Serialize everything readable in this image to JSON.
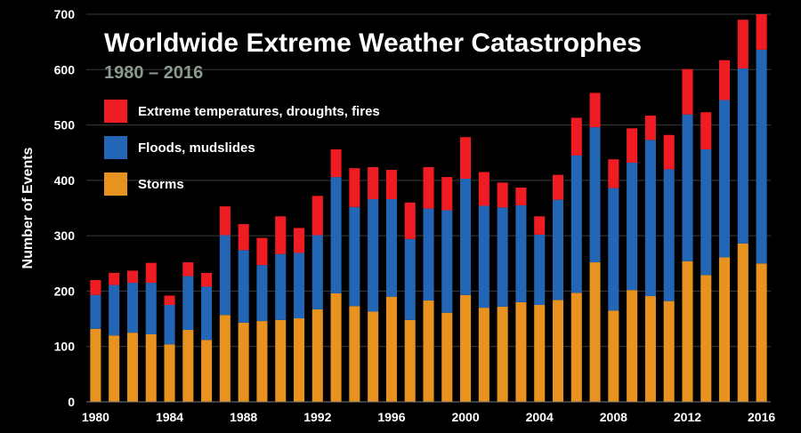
{
  "chart_data": {
    "type": "bar",
    "stacked": true,
    "title": "Worldwide Extreme Weather Catastrophes",
    "subtitle": "1980 – 2016",
    "ylabel": "Number of Events",
    "xlabel": "",
    "ylim": [
      0,
      700
    ],
    "yticks": [
      "0",
      "100",
      "200",
      "300",
      "400",
      "500",
      "600",
      "700"
    ],
    "xticks": [
      "1980",
      "1984",
      "1988",
      "1992",
      "1996",
      "2000",
      "2004",
      "2008",
      "2012",
      "2016"
    ],
    "grid": true,
    "legend_position": "top-left",
    "categories": [
      1980,
      1981,
      1982,
      1983,
      1984,
      1985,
      1986,
      1987,
      1988,
      1989,
      1990,
      1991,
      1992,
      1993,
      1994,
      1995,
      1996,
      1997,
      1998,
      1999,
      2000,
      2001,
      2002,
      2003,
      2004,
      2005,
      2006,
      2007,
      2008,
      2009,
      2010,
      2011,
      2012,
      2013,
      2014,
      2015,
      2016
    ],
    "series": [
      {
        "name": "Storms",
        "color": "#e8921f",
        "values": [
          132,
          120,
          125,
          122,
          104,
          130,
          112,
          157,
          143,
          146,
          148,
          151,
          167,
          196,
          173,
          163,
          190,
          148,
          183,
          161,
          193,
          170,
          172,
          180,
          175,
          184,
          197,
          252,
          165,
          202,
          191,
          182,
          254,
          229,
          261,
          286,
          250
        ]
      },
      {
        "name": "Floods, mudslides",
        "color": "#2366b5",
        "values": [
          61,
          91,
          90,
          93,
          71,
          97,
          96,
          144,
          131,
          101,
          119,
          118,
          134,
          210,
          179,
          203,
          176,
          146,
          166,
          185,
          210,
          184,
          179,
          175,
          127,
          181,
          248,
          244,
          221,
          230,
          282,
          238,
          265,
          227,
          284,
          316,
          386
        ]
      },
      {
        "name": "Extreme temperatures, droughts, fires",
        "color": "#f01c24",
        "values": [
          27,
          22,
          22,
          36,
          17,
          25,
          25,
          52,
          47,
          49,
          68,
          45,
          71,
          50,
          70,
          58,
          53,
          66,
          75,
          60,
          75,
          61,
          45,
          32,
          33,
          45,
          68,
          62,
          52,
          62,
          44,
          62,
          82,
          67,
          72,
          88,
          66
        ]
      }
    ]
  }
}
